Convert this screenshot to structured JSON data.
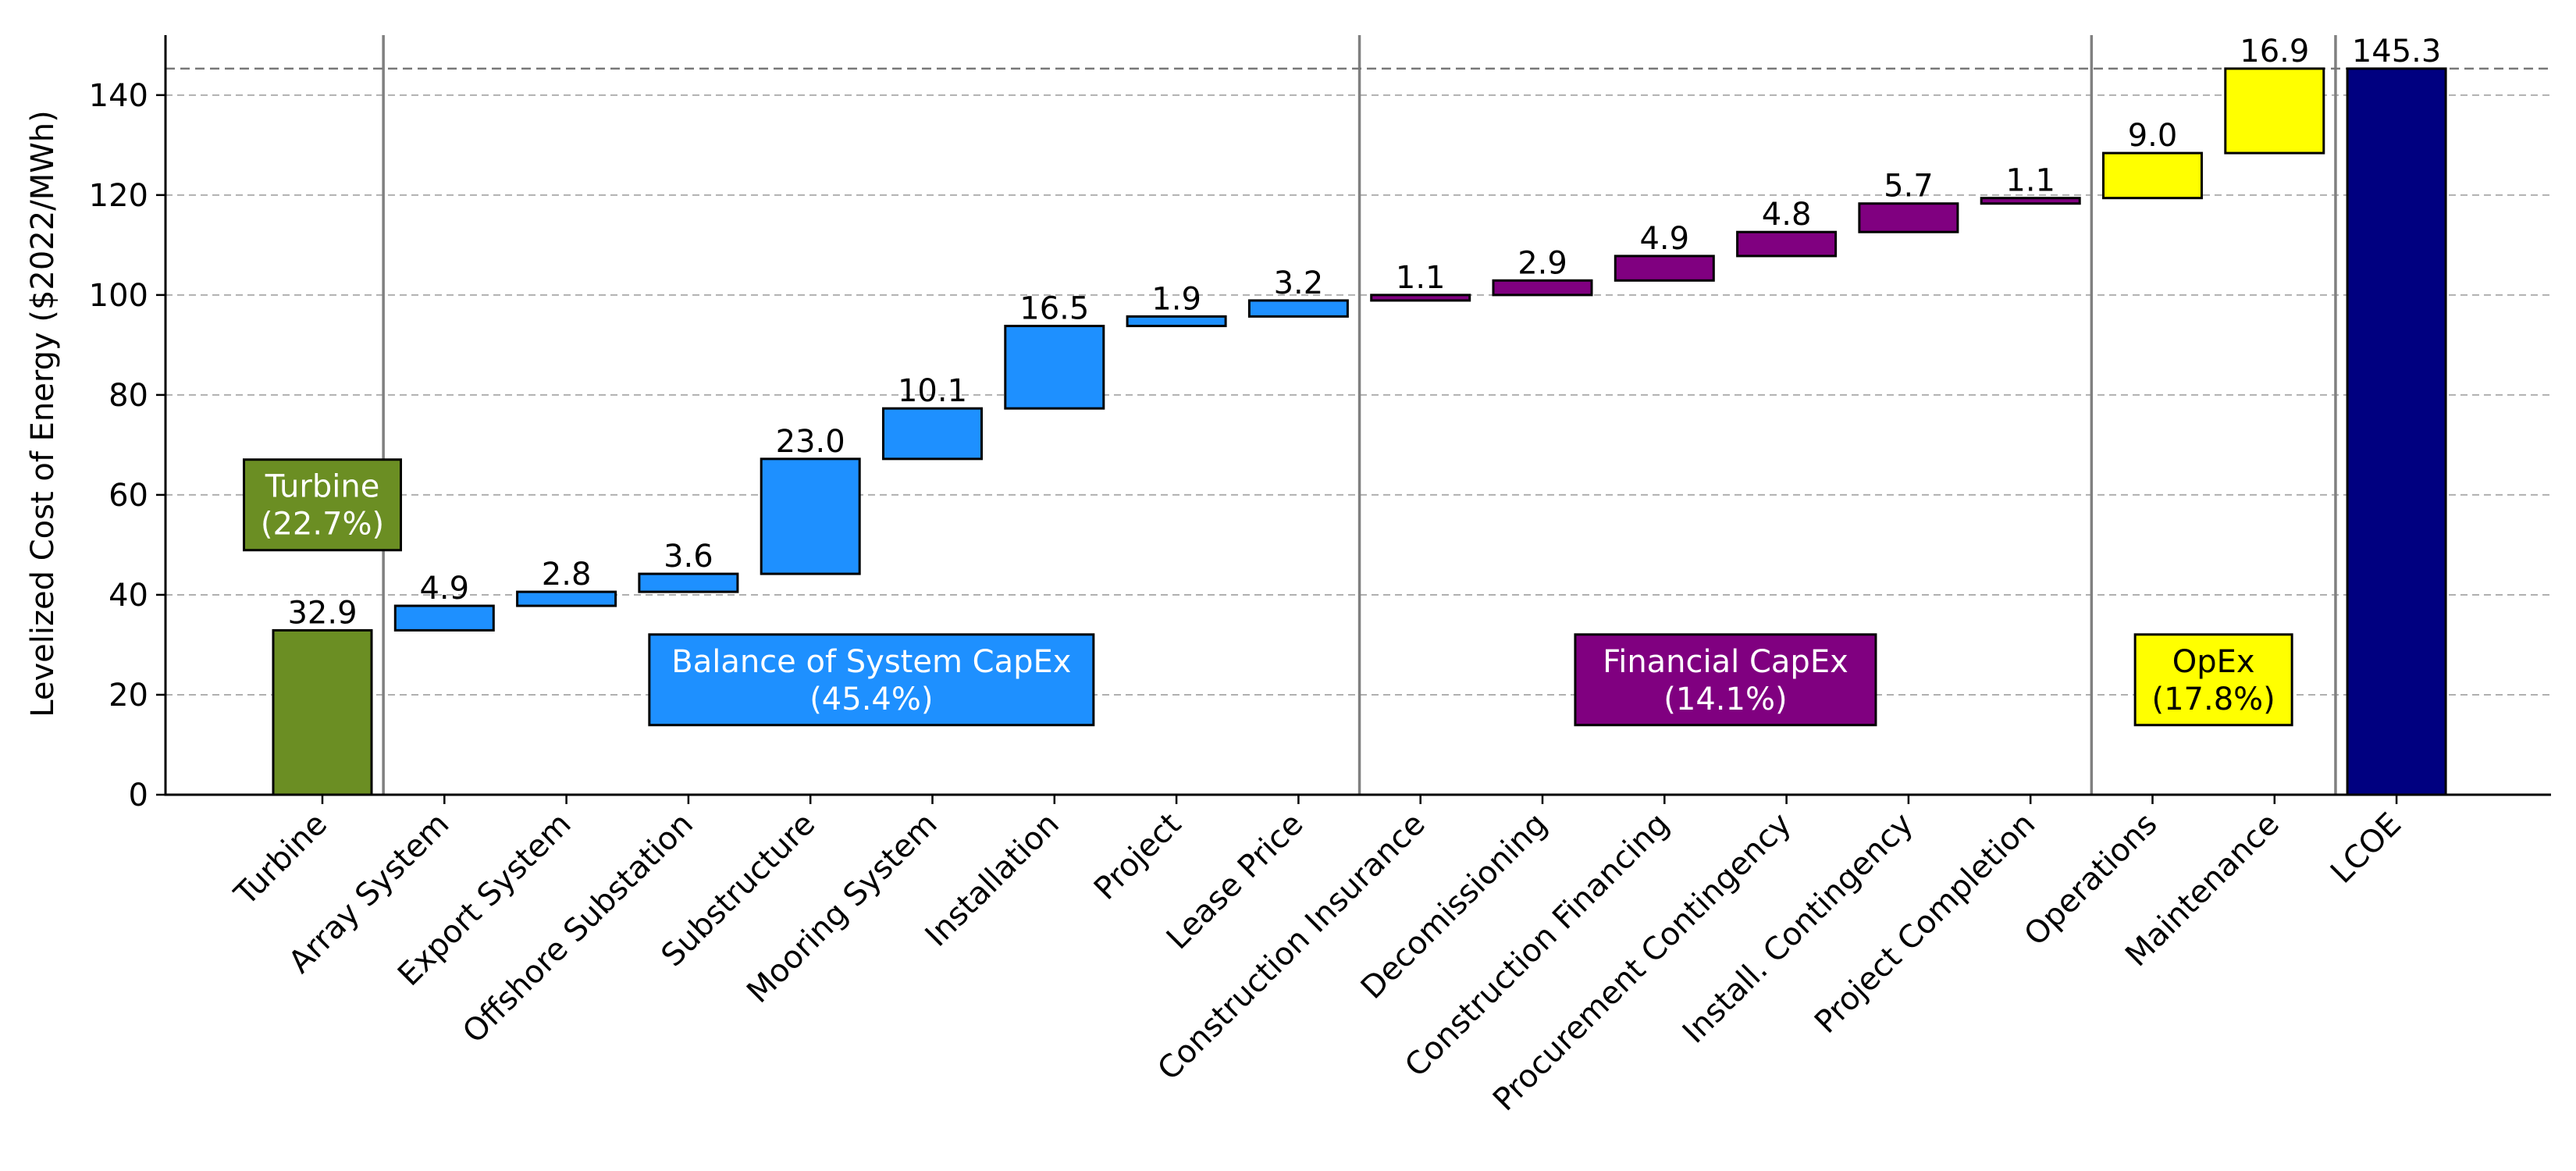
{
  "chart_data": {
    "type": "bar",
    "subtype": "waterfall",
    "ylabel": "Levelized Cost of Energy ($2022/MWh)",
    "ylim": [
      0,
      152
    ],
    "yticks": [
      "0",
      "20",
      "40",
      "60",
      "80",
      "100",
      "120",
      "140"
    ],
    "ytick_values": [
      0,
      20,
      40,
      60,
      80,
      100,
      120,
      140
    ],
    "grid": "horizontal-dashed",
    "total_line": 145.3,
    "categories": [
      "Turbine",
      "Array System",
      "Export System",
      "Offshore Substation",
      "Substructure",
      "Mooring System",
      "Installation",
      "Project",
      "Lease Price",
      "Construction Insurance",
      "Decomissioning",
      "Construction Financing",
      "Procurement Contingency",
      "Install. Contingency",
      "Project Completion",
      "Operations",
      "Maintenance",
      "LCOE"
    ],
    "values": [
      32.9,
      4.9,
      2.8,
      3.6,
      23.0,
      10.1,
      16.5,
      1.9,
      3.2,
      1.1,
      2.9,
      4.9,
      4.8,
      5.7,
      1.1,
      9.0,
      16.9,
      145.3
    ],
    "value_labels": [
      "32.9",
      "4.9",
      "2.8",
      "3.6",
      "23.0",
      "10.1",
      "16.5",
      "1.9",
      "3.2",
      "1.1",
      "2.9",
      "4.9",
      "4.8",
      "5.7",
      "1.1",
      "9.0",
      "16.9",
      "145.3"
    ],
    "bar_group": [
      0,
      1,
      1,
      1,
      1,
      1,
      1,
      1,
      1,
      2,
      2,
      2,
      2,
      2,
      2,
      3,
      3,
      4
    ],
    "groups": [
      {
        "line1": "Turbine",
        "line2": "(22.7%)",
        "color": "#6b8e23",
        "text_color": "#ffffff",
        "center_category": 0,
        "box_center_value": 58
      },
      {
        "line1": "Balance of System CapEx",
        "line2": "(45.4%)",
        "color": "#1e90ff",
        "text_color": "#ffffff",
        "center_category": 4.5,
        "box_center_value": 23
      },
      {
        "line1": "Financial CapEx",
        "line2": "(14.1%)",
        "color": "#800080",
        "text_color": "#ffffff",
        "center_category": 11.5,
        "box_center_value": 23
      },
      {
        "line1": "OpEx",
        "line2": "(17.8%)",
        "color": "#ffff00",
        "text_color": "#000000",
        "center_category": 15.5,
        "box_center_value": 23
      },
      {
        "line1": "",
        "line2": "",
        "color": "#000080",
        "text_color": "#ffffff"
      }
    ],
    "group_separators_after_category": [
      0,
      8,
      14,
      16
    ]
  }
}
